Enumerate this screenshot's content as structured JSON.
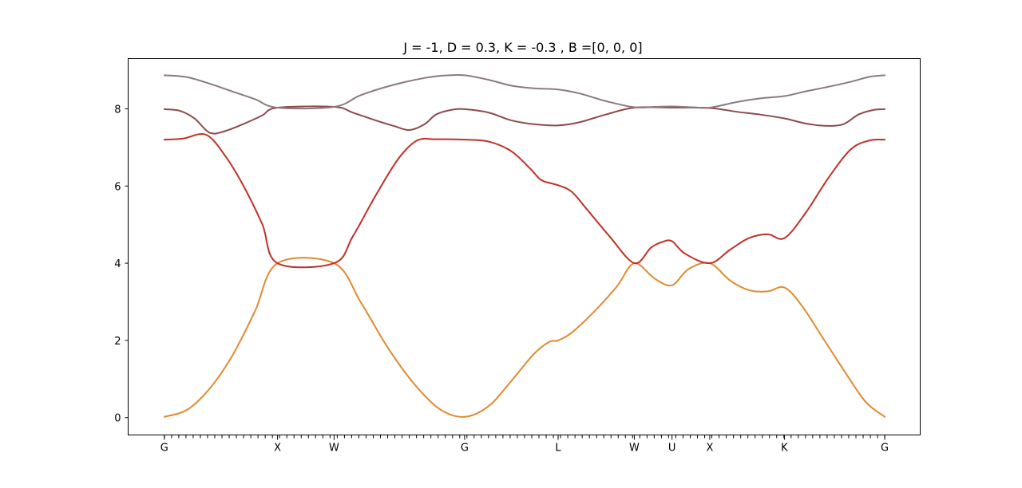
{
  "chart_data": {
    "type": "line",
    "title": "J = -1, D = 0.3, K = -0.3 , B =[0, 0, 0]",
    "xlabel": "",
    "ylabel": "",
    "ylim": [
      -0.45,
      9.3
    ],
    "yticks": [
      0,
      2,
      4,
      6,
      8
    ],
    "grid": false,
    "legend": "none",
    "xlim": [
      -0.48,
      10.02
    ],
    "high_symmetry_points": [
      {
        "label": "G",
        "x": 0
      },
      {
        "label": "X",
        "x": 1.5
      },
      {
        "label": "W",
        "x": 2.25
      },
      {
        "label": "G",
        "x": 3.98
      },
      {
        "label": "L",
        "x": 5.22
      },
      {
        "label": "W",
        "x": 6.23
      },
      {
        "label": "U",
        "x": 6.73
      },
      {
        "label": "X",
        "x": 7.23
      },
      {
        "label": "K",
        "x": 8.22
      },
      {
        "label": "G",
        "x": 9.55
      }
    ],
    "minor_tick_count": 100,
    "series": [
      {
        "color": "#e08a2e",
        "points": [
          [
            0,
            0.02
          ],
          [
            0.3,
            0.2
          ],
          [
            0.6,
            0.75
          ],
          [
            0.9,
            1.6
          ],
          [
            1.2,
            2.75
          ],
          [
            1.5,
            4.0
          ],
          [
            2.25,
            4.0
          ],
          [
            2.6,
            3.0
          ],
          [
            2.95,
            1.85
          ],
          [
            3.3,
            0.9
          ],
          [
            3.65,
            0.22
          ],
          [
            3.98,
            0.02
          ],
          [
            4.3,
            0.3
          ],
          [
            4.6,
            0.95
          ],
          [
            4.9,
            1.65
          ],
          [
            5.1,
            1.96
          ],
          [
            5.22,
            2.0
          ],
          [
            5.4,
            2.2
          ],
          [
            5.7,
            2.75
          ],
          [
            6.0,
            3.4
          ],
          [
            6.23,
            4.0
          ],
          [
            6.5,
            3.6
          ],
          [
            6.73,
            3.43
          ],
          [
            6.95,
            3.85
          ],
          [
            7.23,
            4.0
          ],
          [
            7.5,
            3.55
          ],
          [
            7.75,
            3.3
          ],
          [
            8.0,
            3.27
          ],
          [
            8.22,
            3.37
          ],
          [
            8.45,
            2.9
          ],
          [
            8.75,
            2.0
          ],
          [
            9.05,
            1.1
          ],
          [
            9.3,
            0.4
          ],
          [
            9.55,
            0.02
          ]
        ]
      },
      {
        "color": "#c03028",
        "points": [
          [
            0,
            7.2
          ],
          [
            0.25,
            7.23
          ],
          [
            0.55,
            7.33
          ],
          [
            0.8,
            6.8
          ],
          [
            1.05,
            6.0
          ],
          [
            1.3,
            5.0
          ],
          [
            1.5,
            4.0
          ],
          [
            2.25,
            4.0
          ],
          [
            2.5,
            4.7
          ],
          [
            2.8,
            5.75
          ],
          [
            3.1,
            6.7
          ],
          [
            3.35,
            7.18
          ],
          [
            3.6,
            7.21
          ],
          [
            3.98,
            7.2
          ],
          [
            4.3,
            7.15
          ],
          [
            4.6,
            6.9
          ],
          [
            4.85,
            6.45
          ],
          [
            5.0,
            6.15
          ],
          [
            5.22,
            6.02
          ],
          [
            5.4,
            5.85
          ],
          [
            5.6,
            5.4
          ],
          [
            5.9,
            4.7
          ],
          [
            6.23,
            4.0
          ],
          [
            6.45,
            4.4
          ],
          [
            6.6,
            4.55
          ],
          [
            6.73,
            4.57
          ],
          [
            6.9,
            4.25
          ],
          [
            7.23,
            4.0
          ],
          [
            7.5,
            4.35
          ],
          [
            7.75,
            4.65
          ],
          [
            8.0,
            4.75
          ],
          [
            8.22,
            4.65
          ],
          [
            8.5,
            5.3
          ],
          [
            8.8,
            6.2
          ],
          [
            9.1,
            6.95
          ],
          [
            9.35,
            7.18
          ],
          [
            9.55,
            7.2
          ]
        ]
      },
      {
        "color": "#8c4a4a",
        "points": [
          [
            0,
            7.99
          ],
          [
            0.2,
            7.95
          ],
          [
            0.4,
            7.75
          ],
          [
            0.6,
            7.38
          ],
          [
            0.8,
            7.42
          ],
          [
            1.1,
            7.65
          ],
          [
            1.3,
            7.83
          ],
          [
            1.5,
            8.03
          ],
          [
            2.25,
            8.05
          ],
          [
            2.5,
            7.9
          ],
          [
            2.8,
            7.7
          ],
          [
            3.05,
            7.55
          ],
          [
            3.25,
            7.45
          ],
          [
            3.45,
            7.6
          ],
          [
            3.6,
            7.85
          ],
          [
            3.8,
            7.97
          ],
          [
            3.98,
            7.99
          ],
          [
            4.3,
            7.9
          ],
          [
            4.6,
            7.7
          ],
          [
            4.9,
            7.6
          ],
          [
            5.22,
            7.57
          ],
          [
            5.5,
            7.65
          ],
          [
            5.85,
            7.85
          ],
          [
            6.23,
            8.03
          ],
          [
            6.73,
            8.03
          ],
          [
            7.23,
            8.02
          ],
          [
            7.6,
            7.92
          ],
          [
            7.9,
            7.85
          ],
          [
            8.22,
            7.75
          ],
          [
            8.5,
            7.62
          ],
          [
            8.75,
            7.56
          ],
          [
            9.0,
            7.6
          ],
          [
            9.2,
            7.85
          ],
          [
            9.4,
            7.97
          ],
          [
            9.55,
            7.99
          ]
        ]
      },
      {
        "color": "#8c7a80",
        "points": [
          [
            0,
            8.87
          ],
          [
            0.3,
            8.82
          ],
          [
            0.6,
            8.65
          ],
          [
            0.9,
            8.45
          ],
          [
            1.2,
            8.25
          ],
          [
            1.5,
            8.03
          ],
          [
            2.25,
            8.05
          ],
          [
            2.6,
            8.35
          ],
          [
            3.0,
            8.6
          ],
          [
            3.4,
            8.78
          ],
          [
            3.7,
            8.86
          ],
          [
            3.98,
            8.87
          ],
          [
            4.3,
            8.75
          ],
          [
            4.6,
            8.6
          ],
          [
            4.9,
            8.53
          ],
          [
            5.22,
            8.5
          ],
          [
            5.5,
            8.4
          ],
          [
            5.85,
            8.2
          ],
          [
            6.23,
            8.04
          ],
          [
            6.5,
            8.05
          ],
          [
            6.73,
            8.06
          ],
          [
            7.0,
            8.04
          ],
          [
            7.23,
            8.03
          ],
          [
            7.6,
            8.18
          ],
          [
            7.9,
            8.27
          ],
          [
            8.22,
            8.33
          ],
          [
            8.5,
            8.45
          ],
          [
            8.8,
            8.57
          ],
          [
            9.1,
            8.7
          ],
          [
            9.35,
            8.83
          ],
          [
            9.55,
            8.87
          ]
        ]
      }
    ]
  }
}
